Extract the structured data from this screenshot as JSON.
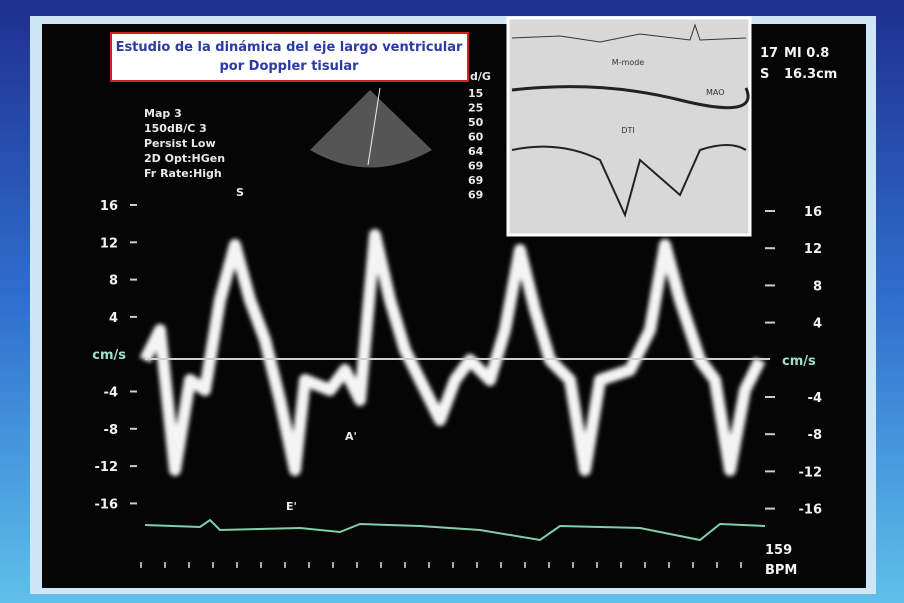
{
  "title_box": {
    "lines": [
      "Estudio de la dinámica del eje largo ventricular",
      "por Doppler tisular"
    ]
  },
  "settings": [
    "Map 3",
    "150dB/C 3",
    "Persist Low",
    "2D Opt:HGen",
    "Fr Rate:High"
  ],
  "header_right": {
    "frame": "17",
    "mode": "S",
    "mi": "MI 0.8",
    "depth": "16.3cm"
  },
  "scale_header": "d/G",
  "scale_column": [
    "15",
    "25",
    "50",
    "60",
    "64",
    "69",
    "69",
    "69"
  ],
  "wave_labels": {
    "s": "S",
    "a": "A'",
    "e": "E'"
  },
  "left_axis": [
    "16",
    "12",
    "8",
    "4",
    "cm/s",
    "-4",
    "-8",
    "-12",
    "-16"
  ],
  "right_axis": [
    "16",
    "12",
    "8",
    "4",
    "cm/s",
    "-4",
    "-8",
    "-12",
    "-16"
  ],
  "heart_rate": {
    "value": "159",
    "unit": "BPM"
  },
  "inset": {
    "m_mode": "M-mode",
    "mao": "MAO",
    "dti": "DTI"
  }
}
